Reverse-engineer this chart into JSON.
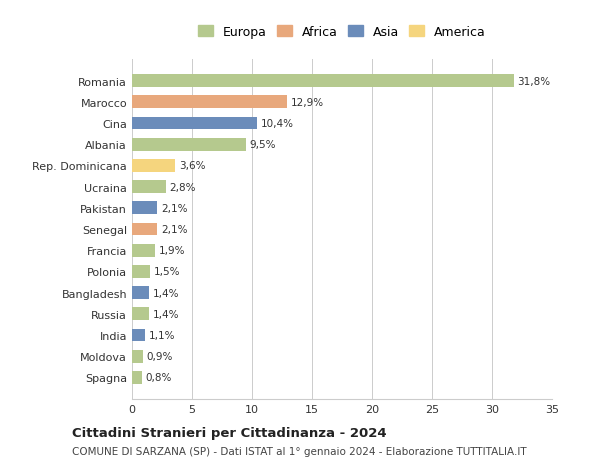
{
  "categories": [
    "Romania",
    "Marocco",
    "Cina",
    "Albania",
    "Rep. Dominicana",
    "Ucraina",
    "Pakistan",
    "Senegal",
    "Francia",
    "Polonia",
    "Bangladesh",
    "Russia",
    "India",
    "Moldova",
    "Spagna"
  ],
  "values": [
    31.8,
    12.9,
    10.4,
    9.5,
    3.6,
    2.8,
    2.1,
    2.1,
    1.9,
    1.5,
    1.4,
    1.4,
    1.1,
    0.9,
    0.8
  ],
  "labels": [
    "31,8%",
    "12,9%",
    "10,4%",
    "9,5%",
    "3,6%",
    "2,8%",
    "2,1%",
    "2,1%",
    "1,9%",
    "1,5%",
    "1,4%",
    "1,4%",
    "1,1%",
    "0,9%",
    "0,8%"
  ],
  "colors": [
    "#b5c98e",
    "#e8a87c",
    "#6b8cba",
    "#b5c98e",
    "#f5d57e",
    "#b5c98e",
    "#6b8cba",
    "#e8a87c",
    "#b5c98e",
    "#b5c98e",
    "#6b8cba",
    "#b5c98e",
    "#6b8cba",
    "#b5c98e",
    "#b5c98e"
  ],
  "legend_labels": [
    "Europa",
    "Africa",
    "Asia",
    "America"
  ],
  "legend_colors": [
    "#b5c98e",
    "#e8a87c",
    "#6b8cba",
    "#f5d57e"
  ],
  "title": "Cittadini Stranieri per Cittadinanza - 2024",
  "subtitle": "COMUNE DI SARZANA (SP) - Dati ISTAT al 1° gennaio 2024 - Elaborazione TUTTITALIA.IT",
  "xlim": [
    0,
    35
  ],
  "xticks": [
    0,
    5,
    10,
    15,
    20,
    25,
    30,
    35
  ],
  "background_color": "#ffffff",
  "grid_color": "#cccccc"
}
